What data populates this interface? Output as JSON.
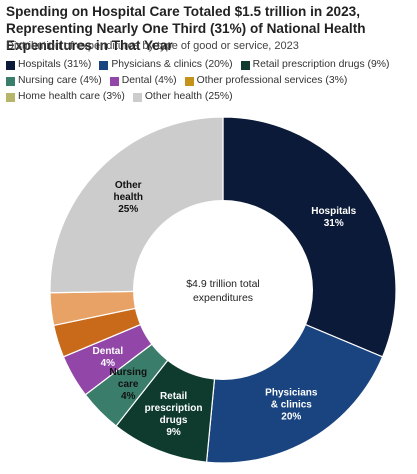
{
  "title": "Spending on Hospital Care Totaled $1.5 trillion in 2023, Representing Nearly One Third (31%) of National Health Expenditures in That Year",
  "subtitle": "Distribution of expenditures by type of good or service, 2023",
  "center_label": [
    "$4.9 trillion total",
    "expenditures"
  ],
  "chart_data": {
    "type": "pie",
    "donut": true,
    "title": "Spending on Hospital Care Totaled $1.5 trillion in 2023, Representing Nearly One Third (31%) of National Health Expenditures in That Year",
    "subtitle": "Distribution of expenditures by type of good or service, 2023",
    "center_text": "$4.9 trillion total expenditures",
    "legend_position": "top",
    "slices": [
      {
        "legend": "Hospitals (31%)",
        "label": [
          "Hospitals",
          "31%"
        ],
        "value": 31,
        "color": "#0b1a38",
        "text_color": "#ffffff"
      },
      {
        "legend": "Physicians & clinics (20%)",
        "label": [
          "Physicians",
          "& clinics",
          "20%"
        ],
        "value": 20,
        "color": "#1a4480",
        "text_color": "#ffffff"
      },
      {
        "legend": "Retail prescription drugs (9%)",
        "label": [
          "Retail",
          "prescription",
          "drugs",
          "9%"
        ],
        "value": 9,
        "color": "#0e3b2e",
        "text_color": "#ffffff"
      },
      {
        "legend": "Nursing care (4%)",
        "label": [
          "Nursing",
          "care",
          "4%"
        ],
        "value": 4,
        "color": "#3a7d6a",
        "text_color": "#111111"
      },
      {
        "legend": "Dental (4%)",
        "label": [
          "Dental",
          "4%"
        ],
        "value": 4,
        "color": "#9146a8",
        "text_color": "#ffffff"
      },
      {
        "legend": "Other professional services (3%)",
        "label": [],
        "value": 3,
        "color": "#c96a1b",
        "text_color": "#ffffff"
      },
      {
        "legend": "Home health care (3%)",
        "label": [],
        "value": 3,
        "color": "#e8a265",
        "text_color": "#ffffff"
      },
      {
        "legend": "Other health (25%)",
        "label": [
          "Other",
          "health",
          "25%"
        ],
        "value": 25,
        "color": "#cccccc",
        "text_color": "#111111"
      }
    ],
    "legend_swatch_colors": [
      "#0b1a38",
      "#1a4480",
      "#0e3b2e",
      "#3a7d6a",
      "#9146a8",
      "#c5921c",
      "#b6b56a",
      "#cccccc"
    ]
  }
}
